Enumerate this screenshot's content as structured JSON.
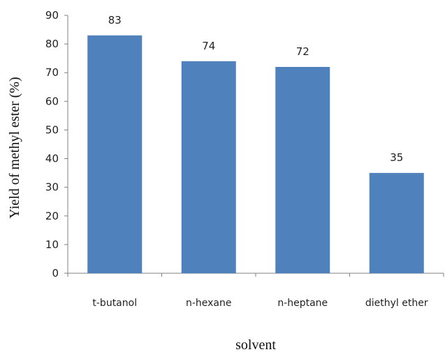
{
  "chart_data": {
    "type": "bar",
    "categories": [
      "t-butanol",
      "n-hexane",
      "n-heptane",
      "diethyl ether"
    ],
    "series": [
      {
        "values": [
          83,
          74,
          72,
          35
        ]
      }
    ],
    "data_labels": [
      "83",
      "74",
      "72",
      "35"
    ],
    "xlabel": "solvent",
    "ylabel": "Yield of methyl ester (%)",
    "ylim": [
      0,
      90
    ],
    "yticks": [
      0,
      10,
      20,
      30,
      40,
      50,
      60,
      70,
      80,
      90
    ],
    "grid": false,
    "legend": "none",
    "bar_color": "#4f81bd"
  }
}
